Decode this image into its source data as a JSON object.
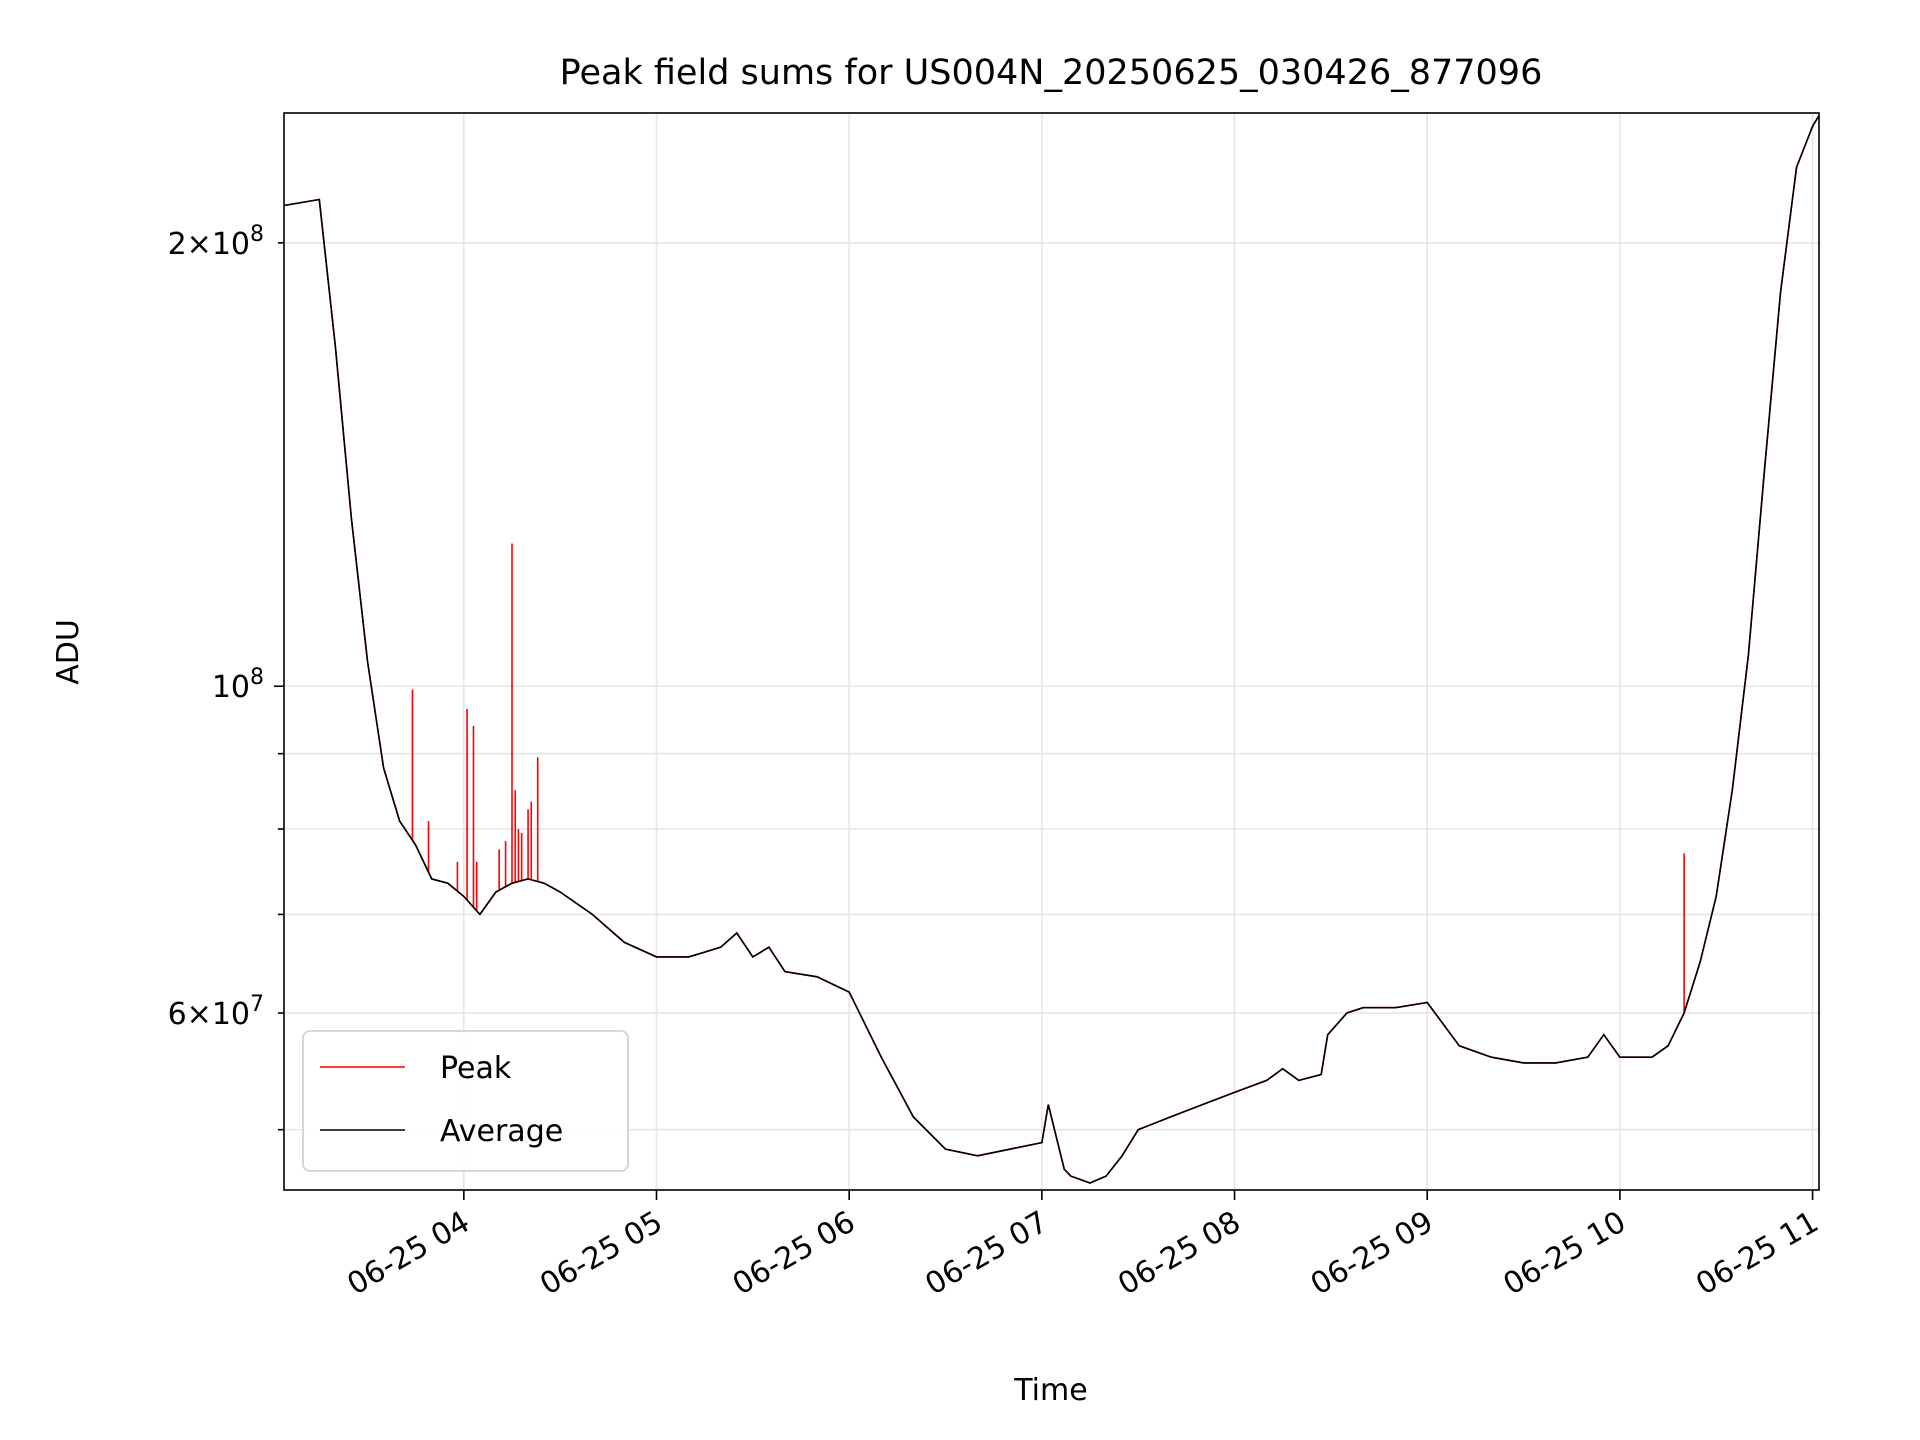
{
  "chart_data": {
    "type": "line",
    "title": "Peak field sums for US004N_20250625_030426_877096",
    "xlabel": "Time",
    "ylabel": "ADU",
    "x_type": "datetime",
    "xlim": [
      "2025-06-25 03:04",
      "2025-06-25 11:02"
    ],
    "y_scale": "log",
    "ylim": [
      45500000,
      245000000
    ],
    "grid": true,
    "legend_position": "lower-left",
    "x_ticks": [
      {
        "value": "2025-06-25 04:00",
        "label": "06-25 04"
      },
      {
        "value": "2025-06-25 05:00",
        "label": "06-25 05"
      },
      {
        "value": "2025-06-25 06:00",
        "label": "06-25 06"
      },
      {
        "value": "2025-06-25 07:00",
        "label": "06-25 07"
      },
      {
        "value": "2025-06-25 08:00",
        "label": "06-25 08"
      },
      {
        "value": "2025-06-25 09:00",
        "label": "06-25 09"
      },
      {
        "value": "2025-06-25 10:00",
        "label": "06-25 10"
      },
      {
        "value": "2025-06-25 11:00",
        "label": "06-25 11"
      }
    ],
    "y_ticks_major": [
      {
        "value": 100000000,
        "mantissa": "",
        "base": "10",
        "exp": "8"
      }
    ],
    "y_ticks_minor": [
      {
        "value": 50000000,
        "mantissa": "",
        "base": "",
        "exp": ""
      },
      {
        "value": 60000000,
        "mantissa": "6",
        "base": "10",
        "exp": "7"
      },
      {
        "value": 70000000,
        "mantissa": "",
        "base": "",
        "exp": ""
      },
      {
        "value": 80000000,
        "mantissa": "",
        "base": "",
        "exp": ""
      },
      {
        "value": 90000000,
        "mantissa": "",
        "base": "",
        "exp": ""
      },
      {
        "value": 200000000,
        "mantissa": "2",
        "base": "10",
        "exp": "8"
      }
    ],
    "series": [
      {
        "name": "Average",
        "color": "#000000",
        "x": [
          "2025-06-25 03:04",
          "2025-06-25 03:15",
          "2025-06-25 03:20",
          "2025-06-25 03:25",
          "2025-06-25 03:30",
          "2025-06-25 03:35",
          "2025-06-25 03:40",
          "2025-06-25 03:45",
          "2025-06-25 03:50",
          "2025-06-25 03:55",
          "2025-06-25 04:00",
          "2025-06-25 04:05",
          "2025-06-25 04:10",
          "2025-06-25 04:15",
          "2025-06-25 04:20",
          "2025-06-25 04:25",
          "2025-06-25 04:30",
          "2025-06-25 04:40",
          "2025-06-25 04:50",
          "2025-06-25 05:00",
          "2025-06-25 05:10",
          "2025-06-25 05:15",
          "2025-06-25 05:20",
          "2025-06-25 05:25",
          "2025-06-25 05:30",
          "2025-06-25 05:35",
          "2025-06-25 05:40",
          "2025-06-25 05:50",
          "2025-06-25 06:00",
          "2025-06-25 06:10",
          "2025-06-25 06:20",
          "2025-06-25 06:30",
          "2025-06-25 06:40",
          "2025-06-25 06:50",
          "2025-06-25 07:00",
          "2025-06-25 07:02",
          "2025-06-25 07:07",
          "2025-06-25 07:09",
          "2025-06-25 07:15",
          "2025-06-25 07:20",
          "2025-06-25 07:25",
          "2025-06-25 07:30",
          "2025-06-25 07:40",
          "2025-06-25 07:50",
          "2025-06-25 08:00",
          "2025-06-25 08:10",
          "2025-06-25 08:15",
          "2025-06-25 08:20",
          "2025-06-25 08:27",
          "2025-06-25 08:29",
          "2025-06-25 08:35",
          "2025-06-25 08:40",
          "2025-06-25 08:50",
          "2025-06-25 09:00",
          "2025-06-25 09:10",
          "2025-06-25 09:20",
          "2025-06-25 09:30",
          "2025-06-25 09:40",
          "2025-06-25 09:50",
          "2025-06-25 09:55",
          "2025-06-25 10:00",
          "2025-06-25 10:10",
          "2025-06-25 10:15",
          "2025-06-25 10:20",
          "2025-06-25 10:25",
          "2025-06-25 10:30",
          "2025-06-25 10:35",
          "2025-06-25 10:40",
          "2025-06-25 10:45",
          "2025-06-25 10:50",
          "2025-06-25 10:55",
          "2025-06-25 11:00",
          "2025-06-25 11:02"
        ],
        "y": [
          212000000,
          214000000,
          170000000,
          130000000,
          104000000,
          88000000,
          81000000,
          78000000,
          74000000,
          73500000,
          72000000,
          70000000,
          72500000,
          73500000,
          74000000,
          73500000,
          72500000,
          70000000,
          67000000,
          65500000,
          65500000,
          66000000,
          66500000,
          68000000,
          65500000,
          66500000,
          64000000,
          63500000,
          62000000,
          56000000,
          51000000,
          48500000,
          48000000,
          48500000,
          49000000,
          52000000,
          47000000,
          46500000,
          46000000,
          46500000,
          48000000,
          50000000,
          51000000,
          52000000,
          53000000,
          54000000,
          55000000,
          54000000,
          54500000,
          58000000,
          60000000,
          60500000,
          60500000,
          61000000,
          57000000,
          56000000,
          55500000,
          55500000,
          56000000,
          58000000,
          56000000,
          56000000,
          57000000,
          60000000,
          65000000,
          72000000,
          85000000,
          105000000,
          140000000,
          185000000,
          225000000,
          240000000,
          244000000
        ]
      },
      {
        "name": "Peak",
        "color": "#ff0000",
        "note_x": "same time base as Average",
        "x": [
          "2025-06-25 03:04",
          "2025-06-25 03:15",
          "2025-06-25 03:20",
          "2025-06-25 03:25",
          "2025-06-25 03:30",
          "2025-06-25 03:35",
          "2025-06-25 03:40",
          "2025-06-25 03:45",
          "2025-06-25 03:50",
          "2025-06-25 03:55",
          "2025-06-25 04:00",
          "2025-06-25 04:05",
          "2025-06-25 04:10",
          "2025-06-25 04:15",
          "2025-06-25 04:20",
          "2025-06-25 04:25",
          "2025-06-25 04:30",
          "2025-06-25 04:40",
          "2025-06-25 04:50",
          "2025-06-25 05:00",
          "2025-06-25 05:10",
          "2025-06-25 05:15",
          "2025-06-25 05:20",
          "2025-06-25 05:25",
          "2025-06-25 05:30",
          "2025-06-25 05:35",
          "2025-06-25 05:40",
          "2025-06-25 05:50",
          "2025-06-25 06:00",
          "2025-06-25 06:10",
          "2025-06-25 06:20",
          "2025-06-25 06:30",
          "2025-06-25 06:40",
          "2025-06-25 06:50",
          "2025-06-25 07:00",
          "2025-06-25 07:02",
          "2025-06-25 07:07",
          "2025-06-25 07:09",
          "2025-06-25 07:15",
          "2025-06-25 07:20",
          "2025-06-25 07:25",
          "2025-06-25 07:30",
          "2025-06-25 07:40",
          "2025-06-25 07:50",
          "2025-06-25 08:00",
          "2025-06-25 08:10",
          "2025-06-25 08:15",
          "2025-06-25 08:20",
          "2025-06-25 08:27",
          "2025-06-25 08:29",
          "2025-06-25 08:35",
          "2025-06-25 08:40",
          "2025-06-25 08:50",
          "2025-06-25 09:00",
          "2025-06-25 09:10",
          "2025-06-25 09:20",
          "2025-06-25 09:30",
          "2025-06-25 09:40",
          "2025-06-25 09:50",
          "2025-06-25 09:55",
          "2025-06-25 10:00",
          "2025-06-25 10:10",
          "2025-06-25 10:15",
          "2025-06-25 10:20",
          "2025-06-25 10:25",
          "2025-06-25 10:30",
          "2025-06-25 10:35",
          "2025-06-25 10:40",
          "2025-06-25 10:45",
          "2025-06-25 10:50",
          "2025-06-25 10:55",
          "2025-06-25 11:00",
          "2025-06-25 11:02"
        ],
        "y": [
          212000000,
          214000000,
          170000000,
          130000000,
          104000000,
          88000000,
          81000000,
          78000000,
          74000000,
          73500000,
          72000000,
          70000000,
          72500000,
          73500000,
          74000000,
          73500000,
          72500000,
          70000000,
          67000000,
          65500000,
          65500000,
          66000000,
          66500000,
          68000000,
          65500000,
          66500000,
          64000000,
          63500000,
          62000000,
          56000000,
          51000000,
          48500000,
          48000000,
          48500000,
          49000000,
          52000000,
          47000000,
          46500000,
          46000000,
          46500000,
          48000000,
          50000000,
          51000000,
          52000000,
          53000000,
          54000000,
          55000000,
          54000000,
          54500000,
          58000000,
          60000000,
          60500000,
          60500000,
          61000000,
          57000000,
          56000000,
          55500000,
          55500000,
          56000000,
          58000000,
          56000000,
          56000000,
          57000000,
          60000000,
          65000000,
          72000000,
          85000000,
          105000000,
          140000000,
          185000000,
          225000000,
          240000000,
          244000000
        ],
        "spikes": [
          {
            "x": "2025-06-25 03:44",
            "y": 99500000
          },
          {
            "x": "2025-06-25 03:49",
            "y": 81000000
          },
          {
            "x": "2025-06-25 03:58",
            "y": 76000000
          },
          {
            "x": "2025-06-25 04:01",
            "y": 96500000
          },
          {
            "x": "2025-06-25 04:03",
            "y": 94000000
          },
          {
            "x": "2025-06-25 04:04",
            "y": 76000000
          },
          {
            "x": "2025-06-25 04:11",
            "y": 77500000
          },
          {
            "x": "2025-06-25 04:13",
            "y": 78500000
          },
          {
            "x": "2025-06-25 04:15",
            "y": 125000000
          },
          {
            "x": "2025-06-25 04:16",
            "y": 85000000
          },
          {
            "x": "2025-06-25 04:17",
            "y": 80000000
          },
          {
            "x": "2025-06-25 04:18",
            "y": 79500000
          },
          {
            "x": "2025-06-25 04:20",
            "y": 82500000
          },
          {
            "x": "2025-06-25 04:21",
            "y": 83500000
          },
          {
            "x": "2025-06-25 04:23",
            "y": 89500000
          },
          {
            "x": "2025-06-25 10:20",
            "y": 77000000
          }
        ]
      }
    ]
  }
}
